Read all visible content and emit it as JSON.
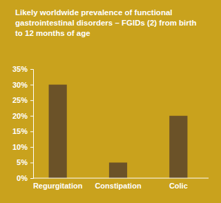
{
  "chart_data": {
    "type": "bar",
    "title": "Likely worldwide prevalence of functional gastrointestinal disorders – FGIDs (2) from birth to 12 months of age",
    "categories": [
      "Regurgitation",
      "Constipation",
      "Colic"
    ],
    "values": [
      30,
      5,
      20
    ],
    "color": "#6b5228",
    "ylim": [
      0,
      35
    ],
    "yticks": [
      {
        "value": 0,
        "label": "0%"
      },
      {
        "value": 5,
        "label": "5%"
      },
      {
        "value": 10,
        "label": "10%"
      },
      {
        "value": 15,
        "label": "15%"
      },
      {
        "value": 20,
        "label": "20%"
      },
      {
        "value": 25,
        "label": "25%"
      },
      {
        "value": 30,
        "label": "30%"
      },
      {
        "value": 35,
        "label": "35%"
      }
    ],
    "grid": false
  }
}
